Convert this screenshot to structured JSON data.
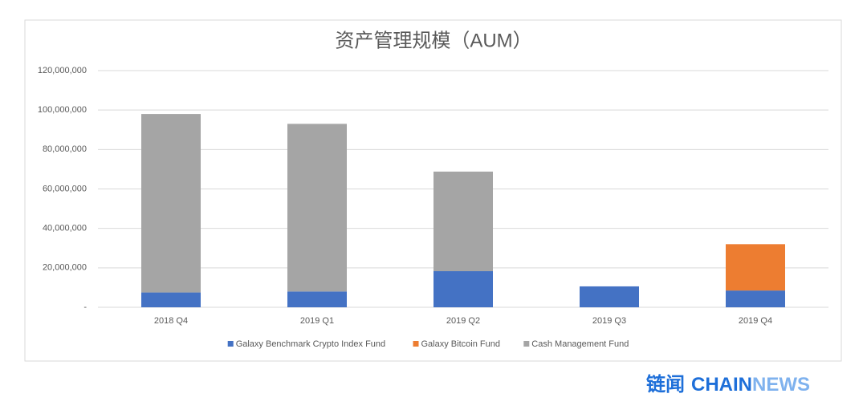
{
  "chart_data": {
    "type": "stacked-bar",
    "title": "资产管理规模（AUM）",
    "categories": [
      "2018 Q4",
      "2019 Q1",
      "2019 Q2",
      "2019 Q3",
      "2019 Q4"
    ],
    "series": [
      {
        "name": "Galaxy Benchmark Crypto Index Fund",
        "color": "#4472c4",
        "values": [
          7500000,
          8000000,
          18300000,
          10600000,
          8500000
        ]
      },
      {
        "name": "Galaxy Bitcoin Fund",
        "color": "#ed7d31",
        "values": [
          0,
          0,
          0,
          0,
          23500000
        ]
      },
      {
        "name": "Cash Management Fund",
        "color": "#a5a5a5",
        "values": [
          90500000,
          85000000,
          50500000,
          0,
          0
        ]
      }
    ],
    "ylim": [
      0,
      120000000
    ],
    "yticks": [
      {
        "value": 0,
        "label": "-"
      },
      {
        "value": 20000000,
        "label": "20,000,000"
      },
      {
        "value": 40000000,
        "label": "40,000,000"
      },
      {
        "value": 60000000,
        "label": "60,000,000"
      },
      {
        "value": 80000000,
        "label": "80,000,000"
      },
      {
        "value": 100000000,
        "label": "100,000,000"
      },
      {
        "value": 120000000,
        "label": "120,000,000"
      }
    ],
    "grid": true
  },
  "watermark": {
    "cn": "链闻",
    "a": "CHAIN",
    "b": "NEWS"
  }
}
